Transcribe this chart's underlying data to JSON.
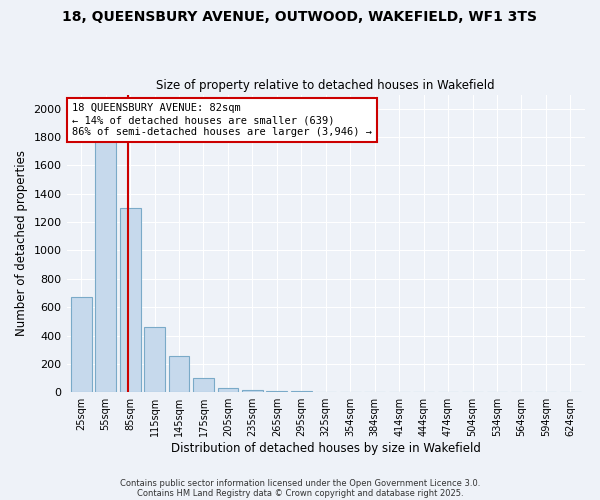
{
  "title_line1": "18, QUEENSBURY AVENUE, OUTWOOD, WAKEFIELD, WF1 3TS",
  "title_line2": "Size of property relative to detached houses in Wakefield",
  "xlabel": "Distribution of detached houses by size in Wakefield",
  "ylabel": "Number of detached properties",
  "categories": [
    "25sqm",
    "55sqm",
    "85sqm",
    "115sqm",
    "145sqm",
    "175sqm",
    "205sqm",
    "235sqm",
    "265sqm",
    "295sqm",
    "325sqm",
    "354sqm",
    "384sqm",
    "414sqm",
    "444sqm",
    "474sqm",
    "504sqm",
    "534sqm",
    "564sqm",
    "594sqm",
    "624sqm"
  ],
  "values": [
    670,
    1820,
    1300,
    460,
    255,
    100,
    30,
    15,
    8,
    5,
    3,
    2,
    1,
    1,
    1,
    0,
    0,
    0,
    0,
    0,
    0
  ],
  "bar_color": "#c6d9ec",
  "bar_edgecolor": "#7aaac8",
  "bar_alpha": 1.0,
  "property_line_color": "#cc0000",
  "annotation_title": "18 QUEENSBURY AVENUE: 82sqm",
  "annotation_line1": "← 14% of detached houses are smaller (639)",
  "annotation_line2": "86% of semi-detached houses are larger (3,946) →",
  "annotation_box_color": "#cc0000",
  "ylim": [
    0,
    2100
  ],
  "yticks": [
    0,
    200,
    400,
    600,
    800,
    1000,
    1200,
    1400,
    1600,
    1800,
    2000
  ],
  "footer_line1": "Contains HM Land Registry data © Crown copyright and database right 2025.",
  "footer_line2": "Contains public sector information licensed under the Open Government Licence 3.0.",
  "bg_color": "#eef2f8",
  "plot_bg_color": "#eef2f8",
  "grid_color": "#ffffff",
  "bar_width": 0.85
}
